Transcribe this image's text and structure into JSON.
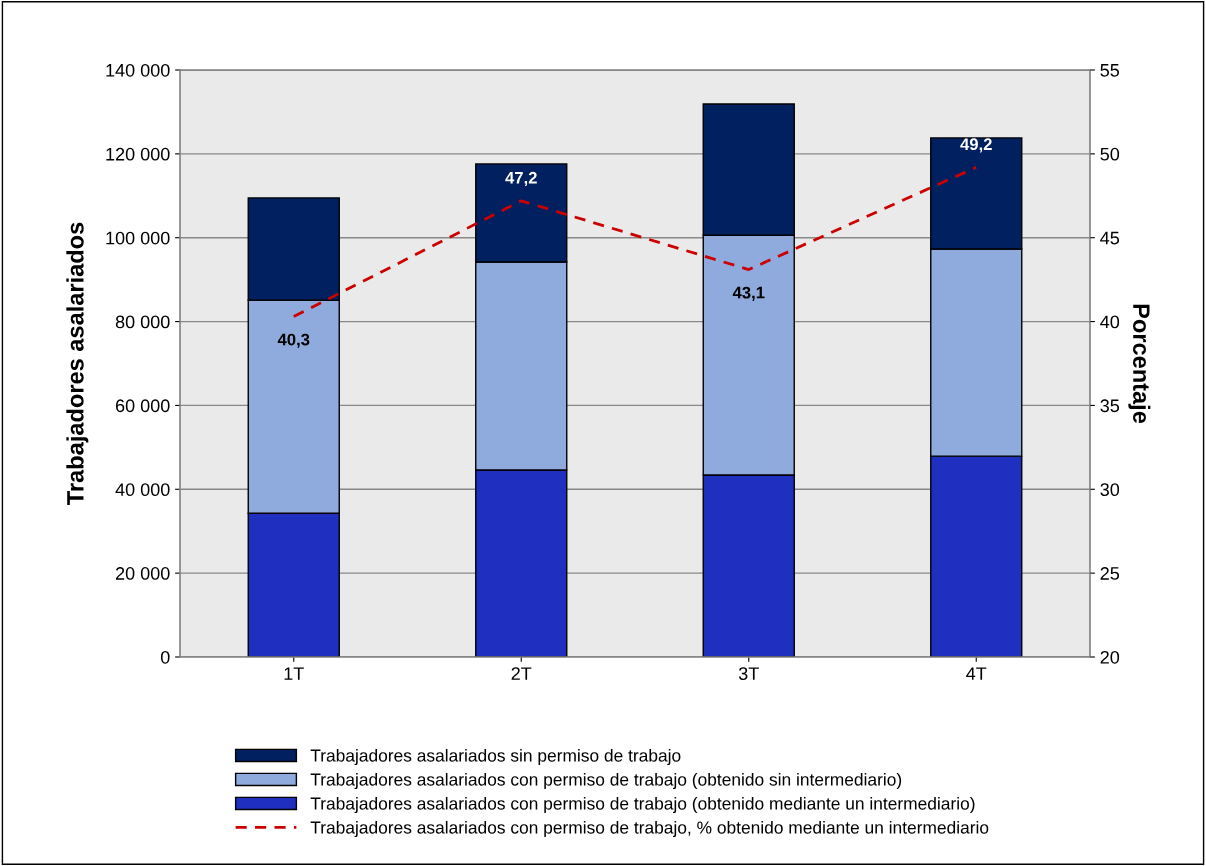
{
  "chart_data": {
    "type": "bar",
    "stacked": true,
    "categories": [
      "1T",
      "2T",
      "3T",
      "4T"
    ],
    "ylabel": "Trabajadores asalariados",
    "y2label": "Porcentaje",
    "ylim": [
      0,
      140000
    ],
    "yticks": [
      {
        "value": 0,
        "label": "0"
      },
      {
        "value": 20000,
        "label": "20 000"
      },
      {
        "value": 40000,
        "label": "40 000"
      },
      {
        "value": 60000,
        "label": "60 000"
      },
      {
        "value": 80000,
        "label": "80 000"
      },
      {
        "value": 100000,
        "label": "100 000"
      },
      {
        "value": 120000,
        "label": "120 000"
      },
      {
        "value": 140000,
        "label": "140 000"
      }
    ],
    "y2lim": [
      20,
      55
    ],
    "y2ticks": [
      20,
      25,
      30,
      35,
      40,
      45,
      50,
      55
    ],
    "grid": "y",
    "legend": "bottom",
    "series": [
      {
        "name": "Trabajadores asalariados con permiso de trabajo (obtenido mediante un intermediario)",
        "color": "#1f2fbf",
        "values": [
          34300,
          44600,
          43400,
          47900
        ]
      },
      {
        "name": "Trabajadores asalariados con permiso de trabajo (obtenido sin intermediario)",
        "color": "#8faadc",
        "values": [
          50800,
          49600,
          57200,
          49400
        ]
      },
      {
        "name": "Trabajadores asalariados sin permiso de trabajo",
        "color": "#00205f",
        "values": [
          24400,
          23400,
          31300,
          26500
        ]
      },
      {
        "name": "Trabajadores asalariados con permiso de trabajo, % obtenido mediante un intermediario",
        "type": "line",
        "axis": "y2",
        "color": "#cc0000",
        "line_style": "dashed",
        "marker": "none",
        "value_labels": [
          "40,3",
          "47,2",
          "43,1",
          "49,2"
        ],
        "values": [
          40.3,
          47.2,
          43.1,
          49.2
        ]
      }
    ]
  }
}
